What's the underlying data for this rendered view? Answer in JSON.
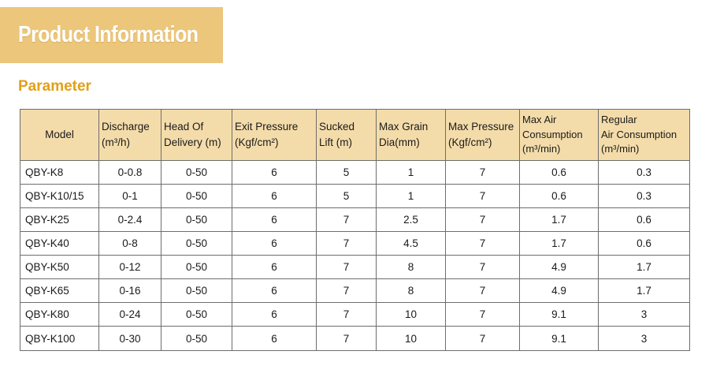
{
  "banner": {
    "title": "Product Information"
  },
  "section": {
    "title": "Parameter"
  },
  "table": {
    "headers": [
      {
        "line1": "Model",
        "line2": ""
      },
      {
        "line1": "Discharge",
        "line2": "(m³/h)"
      },
      {
        "line1": "Head Of",
        "line2": "Delivery (m)"
      },
      {
        "line1": "Exit Pressure",
        "line2": "(Kgf/cm²)"
      },
      {
        "line1": "Sucked",
        "line2": "Lift (m)"
      },
      {
        "line1": "Max Grain",
        "line2": "Dia(mm)"
      },
      {
        "line1": "Max Pressure",
        "line2": "(Kgf/cm²)"
      },
      {
        "line1": "Max Air",
        "line2": "Consumption",
        "line3": "(m³/min)"
      },
      {
        "line1": "Regular",
        "line2": "Air Consumption",
        "line3": "(m³/min)"
      }
    ],
    "rows": [
      [
        "QBY-K8",
        "0-0.8",
        "0-50",
        "6",
        "5",
        "1",
        "7",
        "0.6",
        "0.3"
      ],
      [
        "QBY-K10/15",
        "0-1",
        "0-50",
        "6",
        "5",
        "1",
        "7",
        "0.6",
        "0.3"
      ],
      [
        "QBY-K25",
        "0-2.4",
        "0-50",
        "6",
        "7",
        "2.5",
        "7",
        "1.7",
        "0.6"
      ],
      [
        "QBY-K40",
        "0-8",
        "0-50",
        "6",
        "7",
        "4.5",
        "7",
        "1.7",
        "0.6"
      ],
      [
        "QBY-K50",
        "0-12",
        "0-50",
        "6",
        "7",
        "8",
        "7",
        "4.9",
        "1.7"
      ],
      [
        "QBY-K65",
        "0-16",
        "0-50",
        "6",
        "7",
        "8",
        "7",
        "4.9",
        "1.7"
      ],
      [
        "QBY-K80",
        "0-24",
        "0-50",
        "6",
        "7",
        "10",
        "7",
        "9.1",
        "3"
      ],
      [
        "QBY-K100",
        "0-30",
        "0-50",
        "6",
        "7",
        "10",
        "7",
        "9.1",
        "3"
      ]
    ]
  },
  "colors": {
    "banner_bg": "#ecc67a",
    "section_title": "#e2a019",
    "header_bg": "#f4dcaa",
    "border": "#6d6d6d"
  }
}
